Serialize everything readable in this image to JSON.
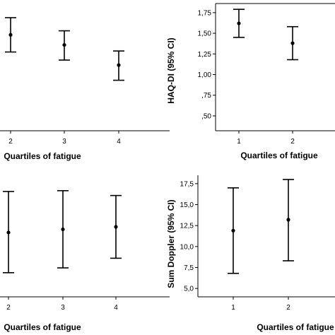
{
  "chart_data": [
    {
      "type": "errorbar",
      "panel": "top-left",
      "xlabel": "Quartiles of fatigue",
      "ylabel": "",
      "categories": [
        "2",
        "3",
        "4"
      ],
      "series": [
        {
          "mean": [
            1.55,
            1.45,
            1.25
          ],
          "ci_low": [
            1.38,
            1.3,
            1.1
          ],
          "ci_high": [
            1.72,
            1.59,
            1.39
          ]
        }
      ],
      "ylim": [
        0.6,
        1.86
      ],
      "yticks": [],
      "grid": false
    },
    {
      "type": "errorbar",
      "panel": "top-right",
      "xlabel": "Quartiles of fatigue",
      "ylabel": "HAQ-DI (95% CI)",
      "categories": [
        "1",
        "2"
      ],
      "series": [
        {
          "mean": [
            1.62,
            1.38
          ],
          "ci_low": [
            1.45,
            1.18
          ],
          "ci_high": [
            1.79,
            1.58
          ]
        }
      ],
      "ylim": [
        0.32,
        1.86
      ],
      "yticks": [
        ",50",
        ",75",
        "1,00",
        "1,25",
        "1,50",
        "1,75"
      ],
      "ytick_values": [
        0.5,
        0.75,
        1.0,
        1.25,
        1.5,
        1.75
      ],
      "grid": false
    },
    {
      "type": "errorbar",
      "panel": "bottom-left",
      "xlabel": "Quartiles of fatigue",
      "ylabel": "",
      "categories": [
        "2",
        "3",
        "4"
      ],
      "series": [
        {
          "mean": [
            12.0,
            12.4,
            12.7
          ],
          "ci_low": [
            7.0,
            7.6,
            8.8
          ],
          "ci_high": [
            17.1,
            17.2,
            16.6
          ]
        }
      ],
      "ylim": [
        4.0,
        18.5
      ],
      "yticks": [],
      "grid": false
    },
    {
      "type": "errorbar",
      "panel": "bottom-right",
      "xlabel": "Quartiles of fatigue",
      "ylabel": "Sum Doppler (95% CI)",
      "categories": [
        "1",
        "2"
      ],
      "series": [
        {
          "mean": [
            11.9,
            13.2
          ],
          "ci_low": [
            6.8,
            8.3
          ],
          "ci_high": [
            17.0,
            18.0
          ]
        }
      ],
      "ylim": [
        4.0,
        18.5
      ],
      "yticks": [
        "5,0",
        "7,5",
        "10,0",
        "12,5",
        "15,0",
        "17,5"
      ],
      "ytick_values": [
        5.0,
        7.5,
        10.0,
        12.5,
        15.0,
        17.5
      ],
      "grid": false
    }
  ]
}
